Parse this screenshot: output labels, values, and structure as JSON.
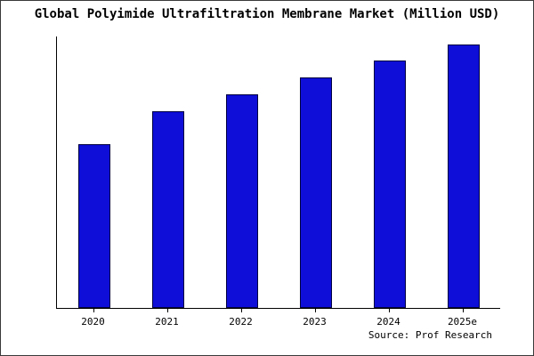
{
  "title": "Global Polyimide Ultrafiltration Membrane Market (Million USD)",
  "source_text": "Source: Prof Research",
  "colors": {
    "bar_fill": "#0e0ed8",
    "bar_border": "#000040",
    "axis": "#000000",
    "background": "#ffffff"
  },
  "chart_data": {
    "type": "bar",
    "title": "Global Polyimide Ultrafiltration Membrane Market (Million USD)",
    "categories": [
      "2020",
      "2021",
      "2022",
      "2023",
      "2024",
      "2025e"
    ],
    "values": [
      62,
      74.5,
      81,
      87.5,
      94,
      100
    ],
    "xlabel": "",
    "ylabel": "",
    "ylim": [
      0,
      103
    ],
    "grid": false,
    "legend": "none",
    "y_axis_labels_visible": false,
    "note": "no y-axis tick labels shown; values estimated relative to tallest bar = 100"
  }
}
